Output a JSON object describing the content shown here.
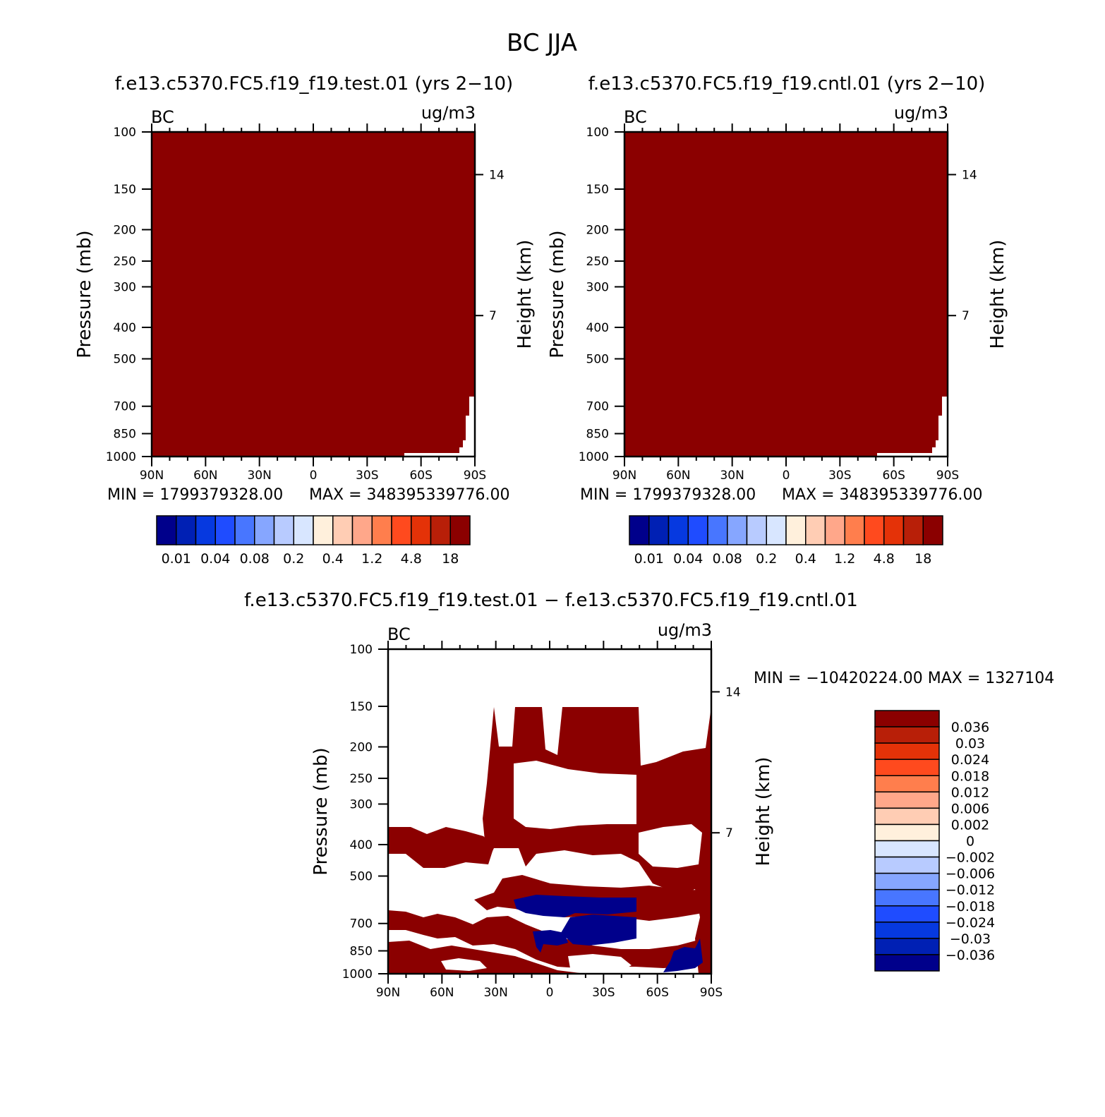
{
  "figure": {
    "title": "BC JJA"
  },
  "chart_data": [
    {
      "type": "heatmap",
      "title": "f.e13.c5370.FC5.f19_f19.test.01 (yrs 2−10)",
      "left_label": "BC",
      "right_label": "ug/m3",
      "ylabel": "Pressure (mb)",
      "ylabel_right": "Height (km)",
      "x_ticks": [
        "90N",
        "60N",
        "30N",
        "0",
        "30S",
        "60S",
        "90S"
      ],
      "y_ticks": [
        100,
        150,
        200,
        250,
        300,
        400,
        500,
        700,
        850,
        1000
      ],
      "y_right_ticks": [
        14,
        7
      ],
      "y_scale": "log",
      "ylim": [
        1000,
        100
      ],
      "min_label": "MIN = 1799379328.00",
      "max_label": "MAX = 348395339776.00",
      "fill_color": "#8b0000",
      "colorbar": {
        "orientation": "horizontal",
        "colors": [
          "#00008b",
          "#0020b4",
          "#0639e0",
          "#1f4cff",
          "#4876ff",
          "#86a6ff",
          "#b8cbff",
          "#d8e6ff",
          "#fff0dc",
          "#ffcdb4",
          "#ffa78a",
          "#ff7e4d",
          "#ff4a1e",
          "#e43208",
          "#b81f08",
          "#8b0000"
        ],
        "labels": [
          "0.01",
          "0.04",
          "0.08",
          "0.2",
          "0.4",
          "1.2",
          "4.8",
          "18"
        ]
      }
    },
    {
      "type": "heatmap",
      "title": "f.e13.c5370.FC5.f19_f19.cntl.01 (yrs 2−10)",
      "left_label": "BC",
      "right_label": "ug/m3",
      "ylabel": "Pressure (mb)",
      "ylabel_right": "Height (km)",
      "x_ticks": [
        "90N",
        "60N",
        "30N",
        "0",
        "30S",
        "60S",
        "90S"
      ],
      "y_ticks": [
        100,
        150,
        200,
        250,
        300,
        400,
        500,
        700,
        850,
        1000
      ],
      "y_right_ticks": [
        14,
        7
      ],
      "y_scale": "log",
      "ylim": [
        1000,
        100
      ],
      "min_label": "MIN = 1799379328.00",
      "max_label": "MAX = 348395339776.00",
      "fill_color": "#8b0000",
      "colorbar": {
        "orientation": "horizontal",
        "colors": [
          "#00008b",
          "#0020b4",
          "#0639e0",
          "#1f4cff",
          "#4876ff",
          "#86a6ff",
          "#b8cbff",
          "#d8e6ff",
          "#fff0dc",
          "#ffcdb4",
          "#ffa78a",
          "#ff7e4d",
          "#ff4a1e",
          "#e43208",
          "#b81f08",
          "#8b0000"
        ],
        "labels": [
          "0.01",
          "0.04",
          "0.08",
          "0.2",
          "0.4",
          "1.2",
          "4.8",
          "18"
        ]
      }
    },
    {
      "type": "heatmap",
      "title": "f.e13.c5370.FC5.f19_f19.test.01 − f.e13.c5370.FC5.f19_f19.cntl.01",
      "left_label": "BC",
      "right_label": "ug/m3",
      "ylabel": "Pressure (mb)",
      "ylabel_right": "Height (km)",
      "x_ticks": [
        "90N",
        "60N",
        "30N",
        "0",
        "30S",
        "60S",
        "90S"
      ],
      "y_ticks": [
        100,
        150,
        200,
        250,
        300,
        400,
        500,
        700,
        850,
        1000
      ],
      "y_right_ticks": [
        14,
        7
      ],
      "y_scale": "log",
      "ylim": [
        1000,
        100
      ],
      "min_max_label": "MIN = −10420224.00   MAX = 1327104",
      "colorbar": {
        "orientation": "vertical",
        "colors": [
          "#8b0000",
          "#b81f08",
          "#e43208",
          "#ff4a1e",
          "#ff7e4d",
          "#ffa78a",
          "#ffcdb4",
          "#fff0dc",
          "#d8e6ff",
          "#b8cbff",
          "#86a6ff",
          "#4876ff",
          "#1f4cff",
          "#0639e0",
          "#0020b4",
          "#00008b"
        ],
        "labels": [
          "0.036",
          "0.03",
          "0.024",
          "0.018",
          "0.012",
          "0.006",
          "0.002",
          "0",
          "−0.002",
          "−0.006",
          "−0.012",
          "−0.018",
          "−0.024",
          "−0.03",
          "−0.036"
        ]
      },
      "positive_color": "#8b0000",
      "negative_color": "#00008b"
    }
  ]
}
